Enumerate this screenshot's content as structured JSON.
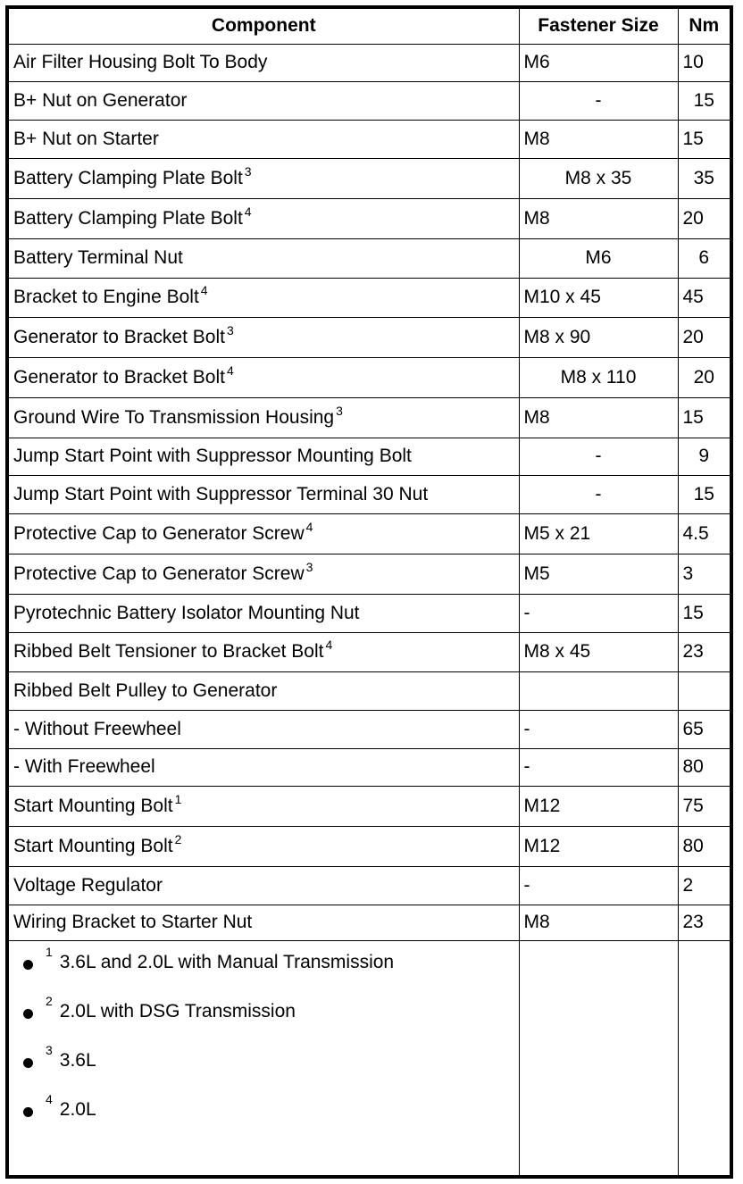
{
  "headers": {
    "component": "Component",
    "size": "Fastener Size",
    "nm": "Nm"
  },
  "rows": [
    {
      "component": "Air Filter Housing Bolt To Body",
      "sup": "",
      "size": "M6",
      "nm": "10"
    },
    {
      "component": "B+ Nut on Generator",
      "sup": "",
      "size": "-",
      "nm": "15"
    },
    {
      "component": "B+ Nut on Starter",
      "sup": "",
      "size": "M8",
      "nm": "15"
    },
    {
      "component": "Battery Clamping Plate Bolt",
      "sup": "3",
      "size": "M8 x 35",
      "nm": "35"
    },
    {
      "component": "Battery Clamping Plate Bolt",
      "sup": "4",
      "size": "M8",
      "nm": "20"
    },
    {
      "component": "Battery Terminal Nut",
      "sup": "",
      "size": "M6",
      "nm": "6"
    },
    {
      "component": "Bracket to Engine Bolt",
      "sup": "4",
      "size": "M10 x 45",
      "nm": "45"
    },
    {
      "component": "Generator to Bracket Bolt",
      "sup": "3",
      "size": "M8 x 90",
      "nm": "20"
    },
    {
      "component": "Generator to Bracket Bolt",
      "sup": "4",
      "size": "M8 x 110",
      "nm": "20"
    },
    {
      "component": "Ground Wire To Transmission Housing",
      "sup": "3",
      "size": "M8",
      "nm": "15"
    },
    {
      "component": "Jump Start Point with Suppressor Mounting Bolt",
      "sup": "",
      "size": "-",
      "nm": "9"
    },
    {
      "component": "Jump Start Point with Suppressor Terminal 30 Nut",
      "sup": "",
      "size": "-",
      "nm": "15"
    },
    {
      "component": "Protective Cap to Generator Screw",
      "sup": "4",
      "size": "M5 x 21",
      "nm": "4.5"
    },
    {
      "component": "Protective Cap to Generator Screw",
      "sup": "3",
      "size": "M5",
      "nm": "3"
    },
    {
      "component": "Pyrotechnic Battery Isolator Mounting Nut",
      "sup": "",
      "size": "-",
      "nm": "15"
    },
    {
      "component": "Ribbed Belt Tensioner to Bracket Bolt",
      "sup": "4",
      "size": "M8 x 45",
      "nm": "23"
    },
    {
      "component": "Ribbed Belt Pulley to Generator",
      "sup": "",
      "size": "",
      "nm": ""
    },
    {
      "component": "- Without Freewheel",
      "sup": "",
      "size": "-",
      "nm": "65"
    },
    {
      "component": "- With Freewheel",
      "sup": "",
      "size": "-",
      "nm": "80"
    },
    {
      "component": "Start Mounting Bolt",
      "sup": "1",
      "size": "M12",
      "nm": "75"
    },
    {
      "component": "Start Mounting Bolt",
      "sup": "2",
      "size": "M12",
      "nm": "80"
    },
    {
      "component": "Voltage Regulator",
      "sup": "",
      "size": "-",
      "nm": "2"
    },
    {
      "component": "Wiring Bracket to Starter Nut",
      "sup": "",
      "size": "M8",
      "nm": "23"
    }
  ],
  "footnotes": [
    {
      "sup": "1",
      "text": "3.6L and 2.0L with Manual Transmission"
    },
    {
      "sup": "2",
      "text": "2.0L with DSG Transmission"
    },
    {
      "sup": "3",
      "text": "3.6L"
    },
    {
      "sup": "4",
      "text": "2.0L"
    }
  ]
}
